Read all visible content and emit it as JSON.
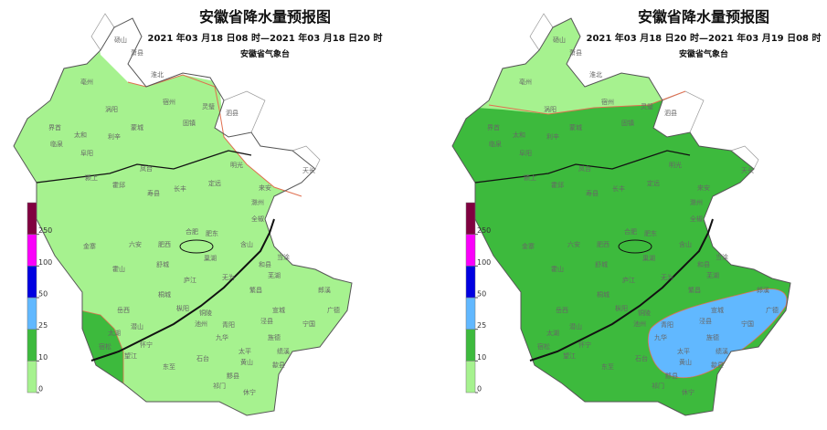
{
  "maps": [
    {
      "title": "安徽省降水量预报图",
      "period": "2021 年03 月18 日08 时—2021 年03 月18 日20 时",
      "issuer": "安徽省气象台"
    },
    {
      "title": "安徽省降水量预报图",
      "period": "2021 年03 月18 日20 时—2021 年03 月19 日08 时",
      "issuer": "安徽省气象台"
    }
  ],
  "legend": {
    "ticks": [
      0,
      10,
      25,
      50,
      100,
      250
    ],
    "colors": [
      "#a6f28f",
      "#3dba3d",
      "#61b8ff",
      "#0000e1",
      "#fa00fa",
      "#800040"
    ]
  },
  "places": [
    "砀山",
    "萧县",
    "淮北",
    "亳州",
    "涡阳",
    "宿州",
    "灵璧",
    "泗县",
    "蒙城",
    "固镇",
    "界首",
    "太和",
    "临泉",
    "阜阳",
    "利辛",
    "颍上",
    "凤台",
    "寿县",
    "长丰",
    "定远",
    "明光",
    "来安",
    "天长",
    "滁州",
    "全椒",
    "霍邱",
    "金寨",
    "六安",
    "霍山",
    "肥西",
    "合肥",
    "肥东",
    "巢湖",
    "含山",
    "和县",
    "舒城",
    "庐江",
    "无为",
    "岳西",
    "潜山",
    "桐城",
    "枞阳",
    "铜陵",
    "繁昌",
    "芜湖",
    "当涂",
    "宣城",
    "郎溪",
    "广德",
    "宁国",
    "泾县",
    "青阳",
    "池州",
    "东至",
    "石台",
    "黄山",
    "祁门",
    "黟县",
    "休宁",
    "歙县",
    "绩溪",
    "旌德",
    "太平",
    "九华",
    "太湖",
    "宿松",
    "望江",
    "怀宁"
  ]
}
